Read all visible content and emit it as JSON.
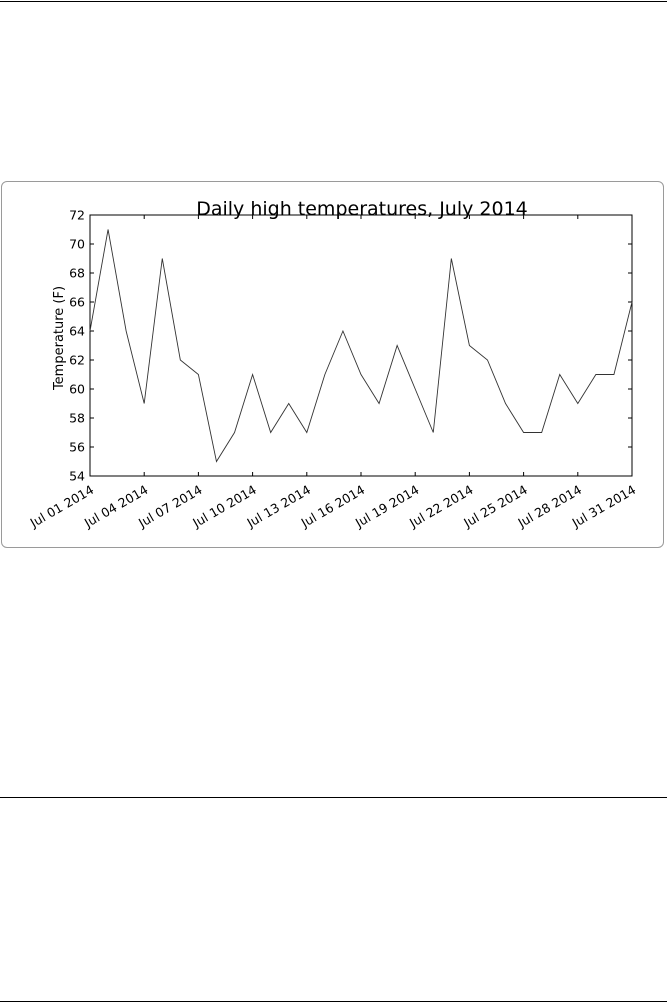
{
  "chart_data": {
    "type": "line",
    "title": "Daily high temperatures, July 2014",
    "xlabel": "",
    "ylabel": "Temperature (F)",
    "ylim": [
      54,
      72
    ],
    "yticks": [
      54,
      56,
      58,
      60,
      62,
      64,
      66,
      68,
      70,
      72
    ],
    "xlim": [
      "2014-07-01",
      "2014-07-31"
    ],
    "xtick_labels": [
      "Jul 01 2014",
      "Jul 04 2014",
      "Jul 07 2014",
      "Jul 10 2014",
      "Jul 13 2014",
      "Jul 16 2014",
      "Jul 19 2014",
      "Jul 22 2014",
      "Jul 25 2014",
      "Jul 28 2014",
      "Jul 31 2014"
    ],
    "grid": false,
    "line_color": "#333333",
    "x": [
      "2014-07-01",
      "2014-07-02",
      "2014-07-03",
      "2014-07-04",
      "2014-07-05",
      "2014-07-06",
      "2014-07-07",
      "2014-07-08",
      "2014-07-09",
      "2014-07-10",
      "2014-07-11",
      "2014-07-12",
      "2014-07-13",
      "2014-07-14",
      "2014-07-15",
      "2014-07-16",
      "2014-07-17",
      "2014-07-18",
      "2014-07-19",
      "2014-07-20",
      "2014-07-21",
      "2014-07-22",
      "2014-07-23",
      "2014-07-24",
      "2014-07-25",
      "2014-07-26",
      "2014-07-27",
      "2014-07-28",
      "2014-07-29",
      "2014-07-30",
      "2014-07-31"
    ],
    "series": [
      {
        "values": [
          64,
          71,
          64,
          59,
          69,
          62,
          61,
          55,
          57,
          61,
          57,
          59,
          57,
          61,
          64,
          61,
          59,
          63,
          60,
          57,
          69,
          63,
          62,
          59,
          57,
          57,
          61,
          59,
          61,
          61,
          66
        ]
      }
    ]
  }
}
